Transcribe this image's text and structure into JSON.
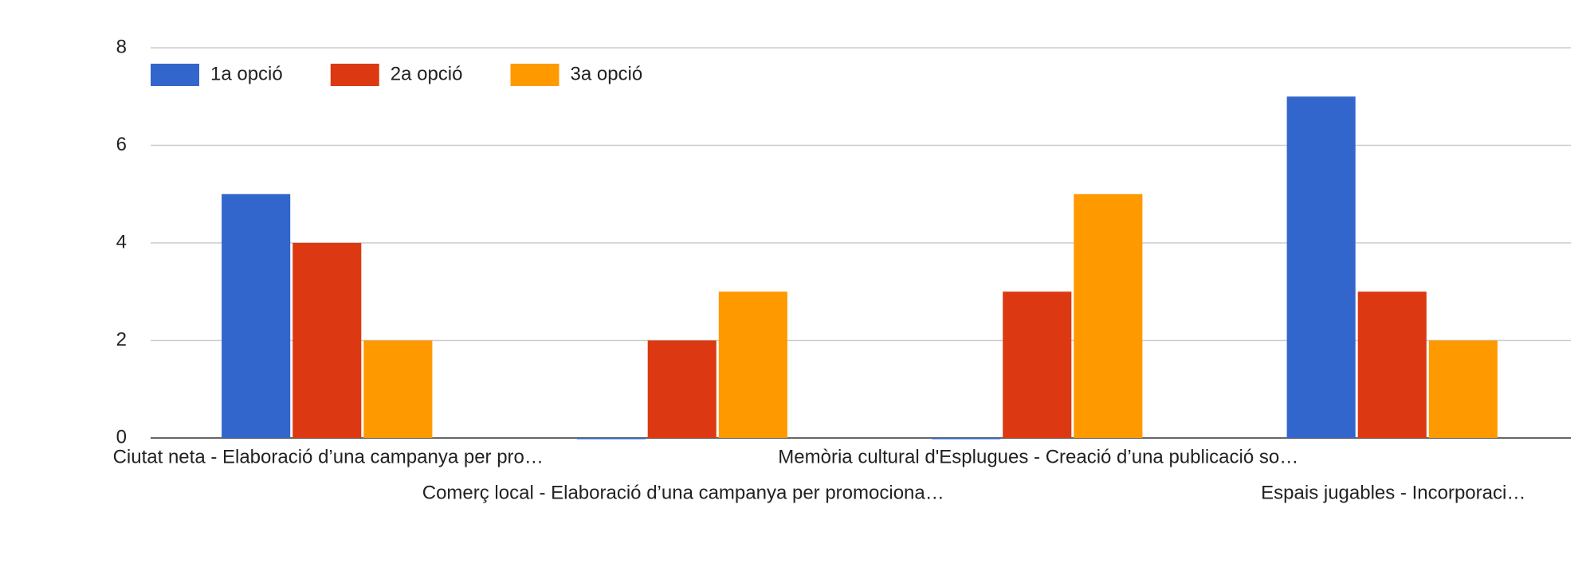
{
  "chart_data": {
    "type": "bar",
    "categories": [
      "Ciutat neta - Elaboració d’una campanya per pro…",
      "Comerç local - Elaboració d’una campanya per promociona…",
      "Memòria cultural d'Esplugues - Creació d’una publicació so…",
      "Espais jugables - Incorporaci…"
    ],
    "series": [
      {
        "name": "1a opció",
        "color": "#3366cc",
        "values": [
          5,
          0,
          0,
          7
        ]
      },
      {
        "name": "2a opció",
        "color": "#dc3912",
        "values": [
          4,
          2,
          3,
          3
        ]
      },
      {
        "name": "3a opció",
        "color": "#ff9900",
        "values": [
          2,
          3,
          5,
          2
        ]
      }
    ],
    "ylim": [
      0,
      8
    ],
    "yticks": [
      0,
      2,
      4,
      6,
      8
    ],
    "grid": true,
    "legend": "top-left"
  }
}
